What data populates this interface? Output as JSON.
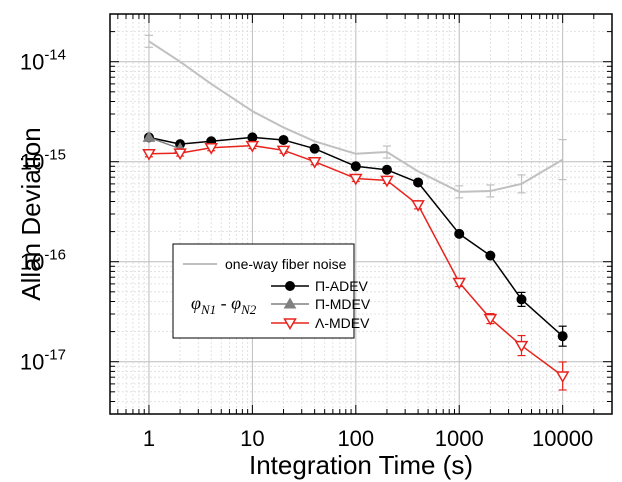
{
  "chart_data": {
    "type": "line",
    "title": "",
    "xlabel": "Integration Time (s)",
    "ylabel": "Allan Deviation",
    "x_scale": "log",
    "y_scale": "log",
    "xlim": [
      0.42,
      30000
    ],
    "ylim": [
      3e-18,
      3e-14
    ],
    "x_ticks": [
      {
        "value": 1,
        "label": "1"
      },
      {
        "value": 10,
        "label": "10"
      },
      {
        "value": 100,
        "label": "100"
      },
      {
        "value": 1000,
        "label": "1000"
      },
      {
        "value": 10000,
        "label": "10000"
      }
    ],
    "y_ticks": [
      {
        "value": 1e-17,
        "base": "10",
        "exp": "-17"
      },
      {
        "value": 1e-16,
        "base": "10",
        "exp": "-16"
      },
      {
        "value": 1e-15,
        "base": "10",
        "exp": "-15"
      },
      {
        "value": 1e-14,
        "base": "10",
        "exp": "-14"
      }
    ],
    "grid": true,
    "legend_placement": "bottom-left",
    "legend_formula": {
      "phi": "φ",
      "sub1": "N1",
      "sep": " - ",
      "sub2": "N2"
    },
    "series": [
      {
        "name": "one-way fiber noise",
        "color": "#c0c0c0",
        "marker": "none",
        "x": [
          1,
          2,
          4,
          10,
          20,
          40,
          100,
          200,
          400,
          1000,
          2000,
          4000,
          10000
        ],
        "y": [
          1.6e-14,
          1e-14,
          6e-15,
          3.2e-15,
          2.2e-15,
          1.6e-15,
          1.2e-15,
          1.25e-15,
          8e-16,
          5e-16,
          5.1e-16,
          6e-16,
          1.05e-15
        ],
        "err": [
          0.06,
          0,
          0,
          0,
          0,
          0,
          0,
          0.06,
          0,
          0.06,
          0.06,
          0.09,
          0.2
        ]
      },
      {
        "name": "Π-ADEV",
        "color": "#000000",
        "marker": "circle",
        "x": [
          1,
          2,
          4,
          10,
          20,
          40,
          100,
          200,
          400,
          1000,
          2000,
          4000,
          10000
        ],
        "y": [
          1.75e-15,
          1.5e-15,
          1.6e-15,
          1.75e-15,
          1.65e-15,
          1.35e-15,
          9e-16,
          8.3e-16,
          6.2e-16,
          1.9e-16,
          1.15e-16,
          4.2e-17,
          1.8e-17
        ],
        "err": [
          0,
          0,
          0,
          0,
          0,
          0,
          0,
          0,
          0,
          0,
          0,
          0.07,
          0.1
        ]
      },
      {
        "name": "Π-MDEV",
        "color": "#808080",
        "marker": "triangle-up",
        "x": [
          1,
          2
        ],
        "y": [
          1.75e-15,
          1.35e-15
        ],
        "err": [
          0,
          0
        ]
      },
      {
        "name": "Λ-MDEV",
        "color": "#e8231e",
        "marker": "triangle-down",
        "x": [
          1,
          2,
          4,
          10,
          20,
          40,
          100,
          200,
          400,
          1000,
          2000,
          4000,
          10000
        ],
        "y": [
          1.2e-15,
          1.22e-15,
          1.38e-15,
          1.45e-15,
          1.3e-15,
          1e-15,
          6.8e-16,
          6.5e-16,
          3.7e-16,
          6.2e-17,
          2.7e-17,
          1.45e-17,
          7.2e-18
        ],
        "err": [
          0.03,
          0.03,
          0.03,
          0.03,
          0.03,
          0.03,
          0.03,
          0.03,
          0.04,
          0.04,
          0.05,
          0.1,
          0.14
        ]
      }
    ]
  }
}
